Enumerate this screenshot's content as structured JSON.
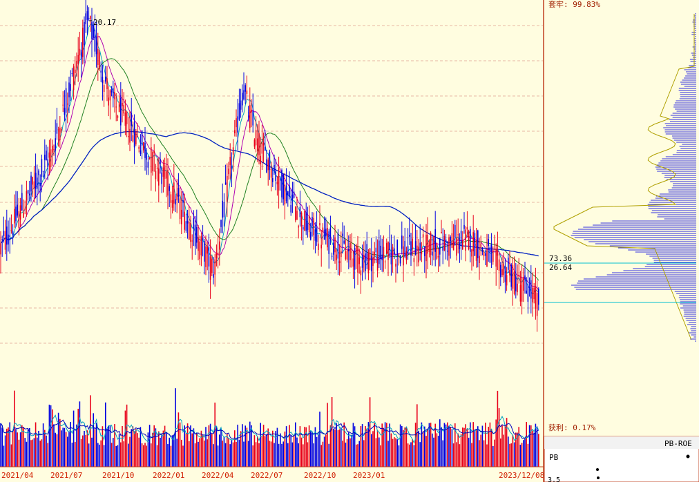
{
  "colors": {
    "background": "#fffde0",
    "up": "#e8001a",
    "down": "#0000e0",
    "ma_short": "#00a0c0",
    "ma_mid": "#b000b0",
    "ma_long": "#208020",
    "ma_year": "#0020c0",
    "grid": "#e0a090",
    "divider": "#c04020",
    "cost_line": "#00c0d0",
    "profile_fill": "#3030e0",
    "profile_pink": "#e040c0",
    "profile_outline": "#b0a000"
  },
  "main": {
    "peak_label": "20.17"
  },
  "right_panel": {
    "top_label": "套牢: 99.83%",
    "level_high": "73.36",
    "level_low": "26.64",
    "bottom_label": "获利: 0.17%",
    "sub_title": "PB-ROE",
    "pb_label": "PB",
    "axis_fragment": "3.5"
  },
  "chart_data": {
    "type": "candlestick",
    "date_labels": [
      "2021/04",
      "2021/07",
      "2021/10",
      "2022/01",
      "2022/04",
      "2022/07",
      "2022/10",
      "2023/01",
      "2023/12/08"
    ],
    "price_anchors": [
      {
        "date": "2021/04",
        "close": 9.5
      },
      {
        "date": "2021/07",
        "close": 14.0
      },
      {
        "date": "2021/08",
        "close": 20.17
      },
      {
        "date": "2021/10",
        "close": 16.5
      },
      {
        "date": "2022/01",
        "close": 12.5
      },
      {
        "date": "2022/04",
        "close": 8.5
      },
      {
        "date": "2022/06",
        "close": 17.0
      },
      {
        "date": "2022/07",
        "close": 14.5
      },
      {
        "date": "2022/10",
        "close": 10.5
      },
      {
        "date": "2023/01",
        "close": 9.0
      },
      {
        "date": "2023/05",
        "close": 10.0
      },
      {
        "date": "2023/12/08",
        "close": 7.0
      }
    ],
    "peak_high": 20.17,
    "indicators": [
      "MA short",
      "MA mid",
      "MA long",
      "MA 250"
    ],
    "volume_panel": true
  }
}
